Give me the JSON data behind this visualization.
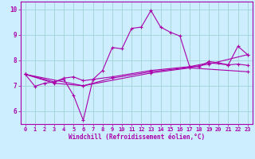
{
  "xlabel": "Windchill (Refroidissement éolien,°C)",
  "bg_color": "#cceeff",
  "line_color": "#aa00aa",
  "grid_color": "#99cccc",
  "xlim": [
    -0.5,
    23.5
  ],
  "ylim": [
    5.5,
    10.3
  ],
  "yticks": [
    6,
    7,
    8,
    9,
    10
  ],
  "xticks": [
    0,
    1,
    2,
    3,
    4,
    5,
    6,
    7,
    8,
    9,
    10,
    11,
    12,
    13,
    14,
    15,
    16,
    17,
    18,
    19,
    20,
    21,
    22,
    23
  ],
  "series1": [
    [
      0,
      7.45
    ],
    [
      1,
      6.98
    ],
    [
      2,
      7.1
    ],
    [
      3,
      7.15
    ],
    [
      4,
      7.25
    ],
    [
      5,
      6.62
    ],
    [
      6,
      5.65
    ],
    [
      7,
      7.25
    ],
    [
      8,
      7.6
    ],
    [
      9,
      8.5
    ],
    [
      10,
      8.45
    ],
    [
      11,
      9.25
    ],
    [
      12,
      9.3
    ],
    [
      13,
      9.95
    ],
    [
      14,
      9.3
    ],
    [
      15,
      9.1
    ],
    [
      16,
      8.95
    ],
    [
      17,
      7.75
    ],
    [
      18,
      7.75
    ],
    [
      19,
      7.95
    ],
    [
      20,
      7.9
    ],
    [
      21,
      7.82
    ],
    [
      22,
      8.55
    ],
    [
      23,
      8.22
    ]
  ],
  "series2": [
    [
      0,
      7.45
    ],
    [
      3,
      7.15
    ],
    [
      4,
      7.3
    ],
    [
      5,
      7.35
    ],
    [
      6,
      7.2
    ],
    [
      9,
      7.35
    ],
    [
      13,
      7.6
    ],
    [
      17,
      7.75
    ],
    [
      19,
      7.9
    ],
    [
      21,
      7.82
    ],
    [
      22,
      7.85
    ],
    [
      23,
      7.8
    ]
  ],
  "series3": [
    [
      0,
      7.45
    ],
    [
      3,
      7.1
    ],
    [
      6,
      7.0
    ],
    [
      9,
      7.3
    ],
    [
      13,
      7.55
    ],
    [
      17,
      7.72
    ],
    [
      19,
      7.85
    ],
    [
      23,
      8.22
    ]
  ],
  "series4": [
    [
      0,
      7.45
    ],
    [
      6,
      7.0
    ],
    [
      13,
      7.5
    ],
    [
      17,
      7.7
    ],
    [
      23,
      7.55
    ]
  ]
}
